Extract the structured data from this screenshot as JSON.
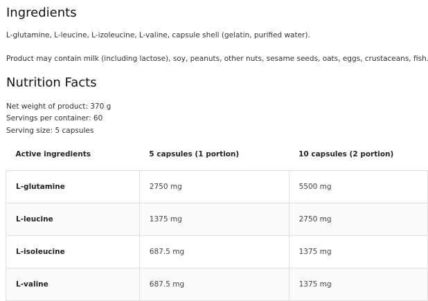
{
  "ingredients": {
    "title": "Ingredients",
    "text": "L-glutamine, L-leucine, L-izoleucine, L-valine, capsule shell (gelatin, purified water).",
    "allergens": "Product may contain milk (including lactose), soy, peanuts, other nuts, sesame seeds, oats, eggs, crustaceans, fish."
  },
  "nutrition": {
    "title": "Nutrition Facts",
    "net_weight": "Net weight of product: 370 g",
    "servings": "Servings per container: 60",
    "serving_size": "Serving size: 5 capsules",
    "headers": [
      "Active ingredients",
      "5 capsules (1 portion)",
      "10 capsules (2 portion)"
    ],
    "rows": [
      [
        "L-glutamine",
        "2750 mg",
        "5500 mg"
      ],
      [
        "L-leucine",
        "1375 mg",
        "2750 mg"
      ],
      [
        "L-isoleucine",
        "687.5 mg",
        "1375 mg"
      ],
      [
        "L-valine",
        "687.5 mg",
        "1375 mg"
      ]
    ]
  }
}
